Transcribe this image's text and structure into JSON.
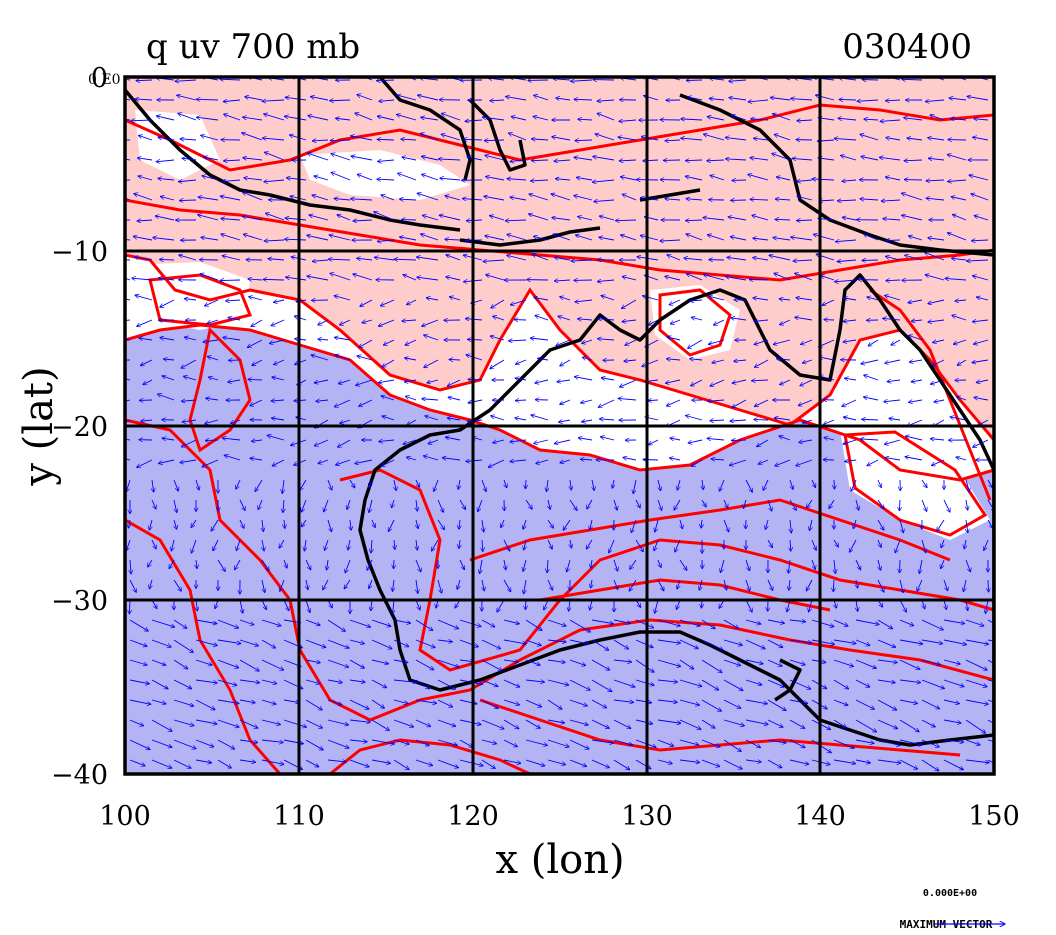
{
  "title_left": "q uv 700 mb",
  "title_right": "030400",
  "x_axis_label": "x (lon)",
  "y_axis_label": "y (lat)",
  "corner_label": "0 E0",
  "vector_scale_value": "0.000E+00",
  "vector_scale_label": "MAXIMUM VECTOR",
  "colors": {
    "high_fill": "#ffcccc",
    "low_fill": "#b4b4f4",
    "mid_fill": "#ffffff",
    "contour": "#ff0000",
    "coast": "#000000",
    "vector": "#0000ff"
  },
  "chart_data": {
    "type": "heatmap",
    "xlim": [
      100,
      150
    ],
    "ylim": [
      -40,
      0
    ],
    "x_ticks": [
      100,
      110,
      120,
      130,
      140,
      150
    ],
    "y_ticks": [
      0,
      -10,
      -20,
      -30,
      -40
    ],
    "x_tick_labels": [
      "100",
      "110",
      "120",
      "130",
      "140",
      "150"
    ],
    "y_tick_labels": [
      "0",
      "−10",
      "−20",
      "−30",
      "−40"
    ],
    "grid": true
  }
}
